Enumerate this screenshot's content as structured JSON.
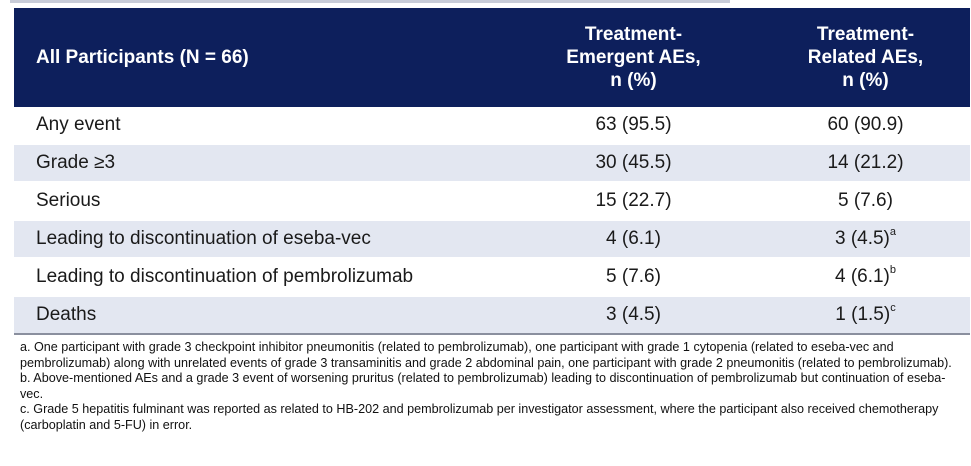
{
  "table": {
    "header": {
      "col1": "All Participants (N = 66)",
      "col2": [
        "Treatment-",
        "Emergent AEs,",
        "n (%)"
      ],
      "col3": [
        "Treatment-",
        "Related AEs,",
        "n (%)"
      ]
    },
    "rows": [
      {
        "label": "Any event",
        "teae": "63 (95.5)",
        "trae": "60  (90.9)",
        "trae_sup": ""
      },
      {
        "label": "Grade ≥3",
        "teae": "30 (45.5)",
        "trae": "14 (21.2)",
        "trae_sup": ""
      },
      {
        "label": "Serious",
        "teae": "15 (22.7)",
        "trae": "5 (7.6)",
        "trae_sup": ""
      },
      {
        "label": "Leading to discontinuation of eseba-vec",
        "teae": "4 (6.1)",
        "trae": "3 (4.5)",
        "trae_sup": "a"
      },
      {
        "label": "Leading to discontinuation of pembrolizumab",
        "teae": "5 (7.6)",
        "trae": "4 (6.1)",
        "trae_sup": "b"
      },
      {
        "label": "Deaths",
        "teae": "3 (4.5)",
        "trae": "1 (1.5)",
        "trae_sup": "c"
      }
    ]
  },
  "footnotes": [
    "a. One participant with grade 3 checkpoint inhibitor pneumonitis (related to pembrolizumab), one participant with grade 1 cytopenia (related to eseba-vec and pembrolizumab) along with unrelated events of grade 3 transaminitis and grade 2 abdominal pain, one participant with grade 2 pneumonitis (related to pembrolizumab).",
    "b. Above-mentioned AEs and a grade 3 event of worsening pruritus (related to pembrolizumab) leading to discontinuation of pembrolizumab but continuation of eseba-vec.",
    "c. Grade 5 hepatitis fulminant was reported as related to HB-202 and pembrolizumab per investigator assessment, where the participant also received chemotherapy (carboplatin and 5-FU) in error."
  ]
}
